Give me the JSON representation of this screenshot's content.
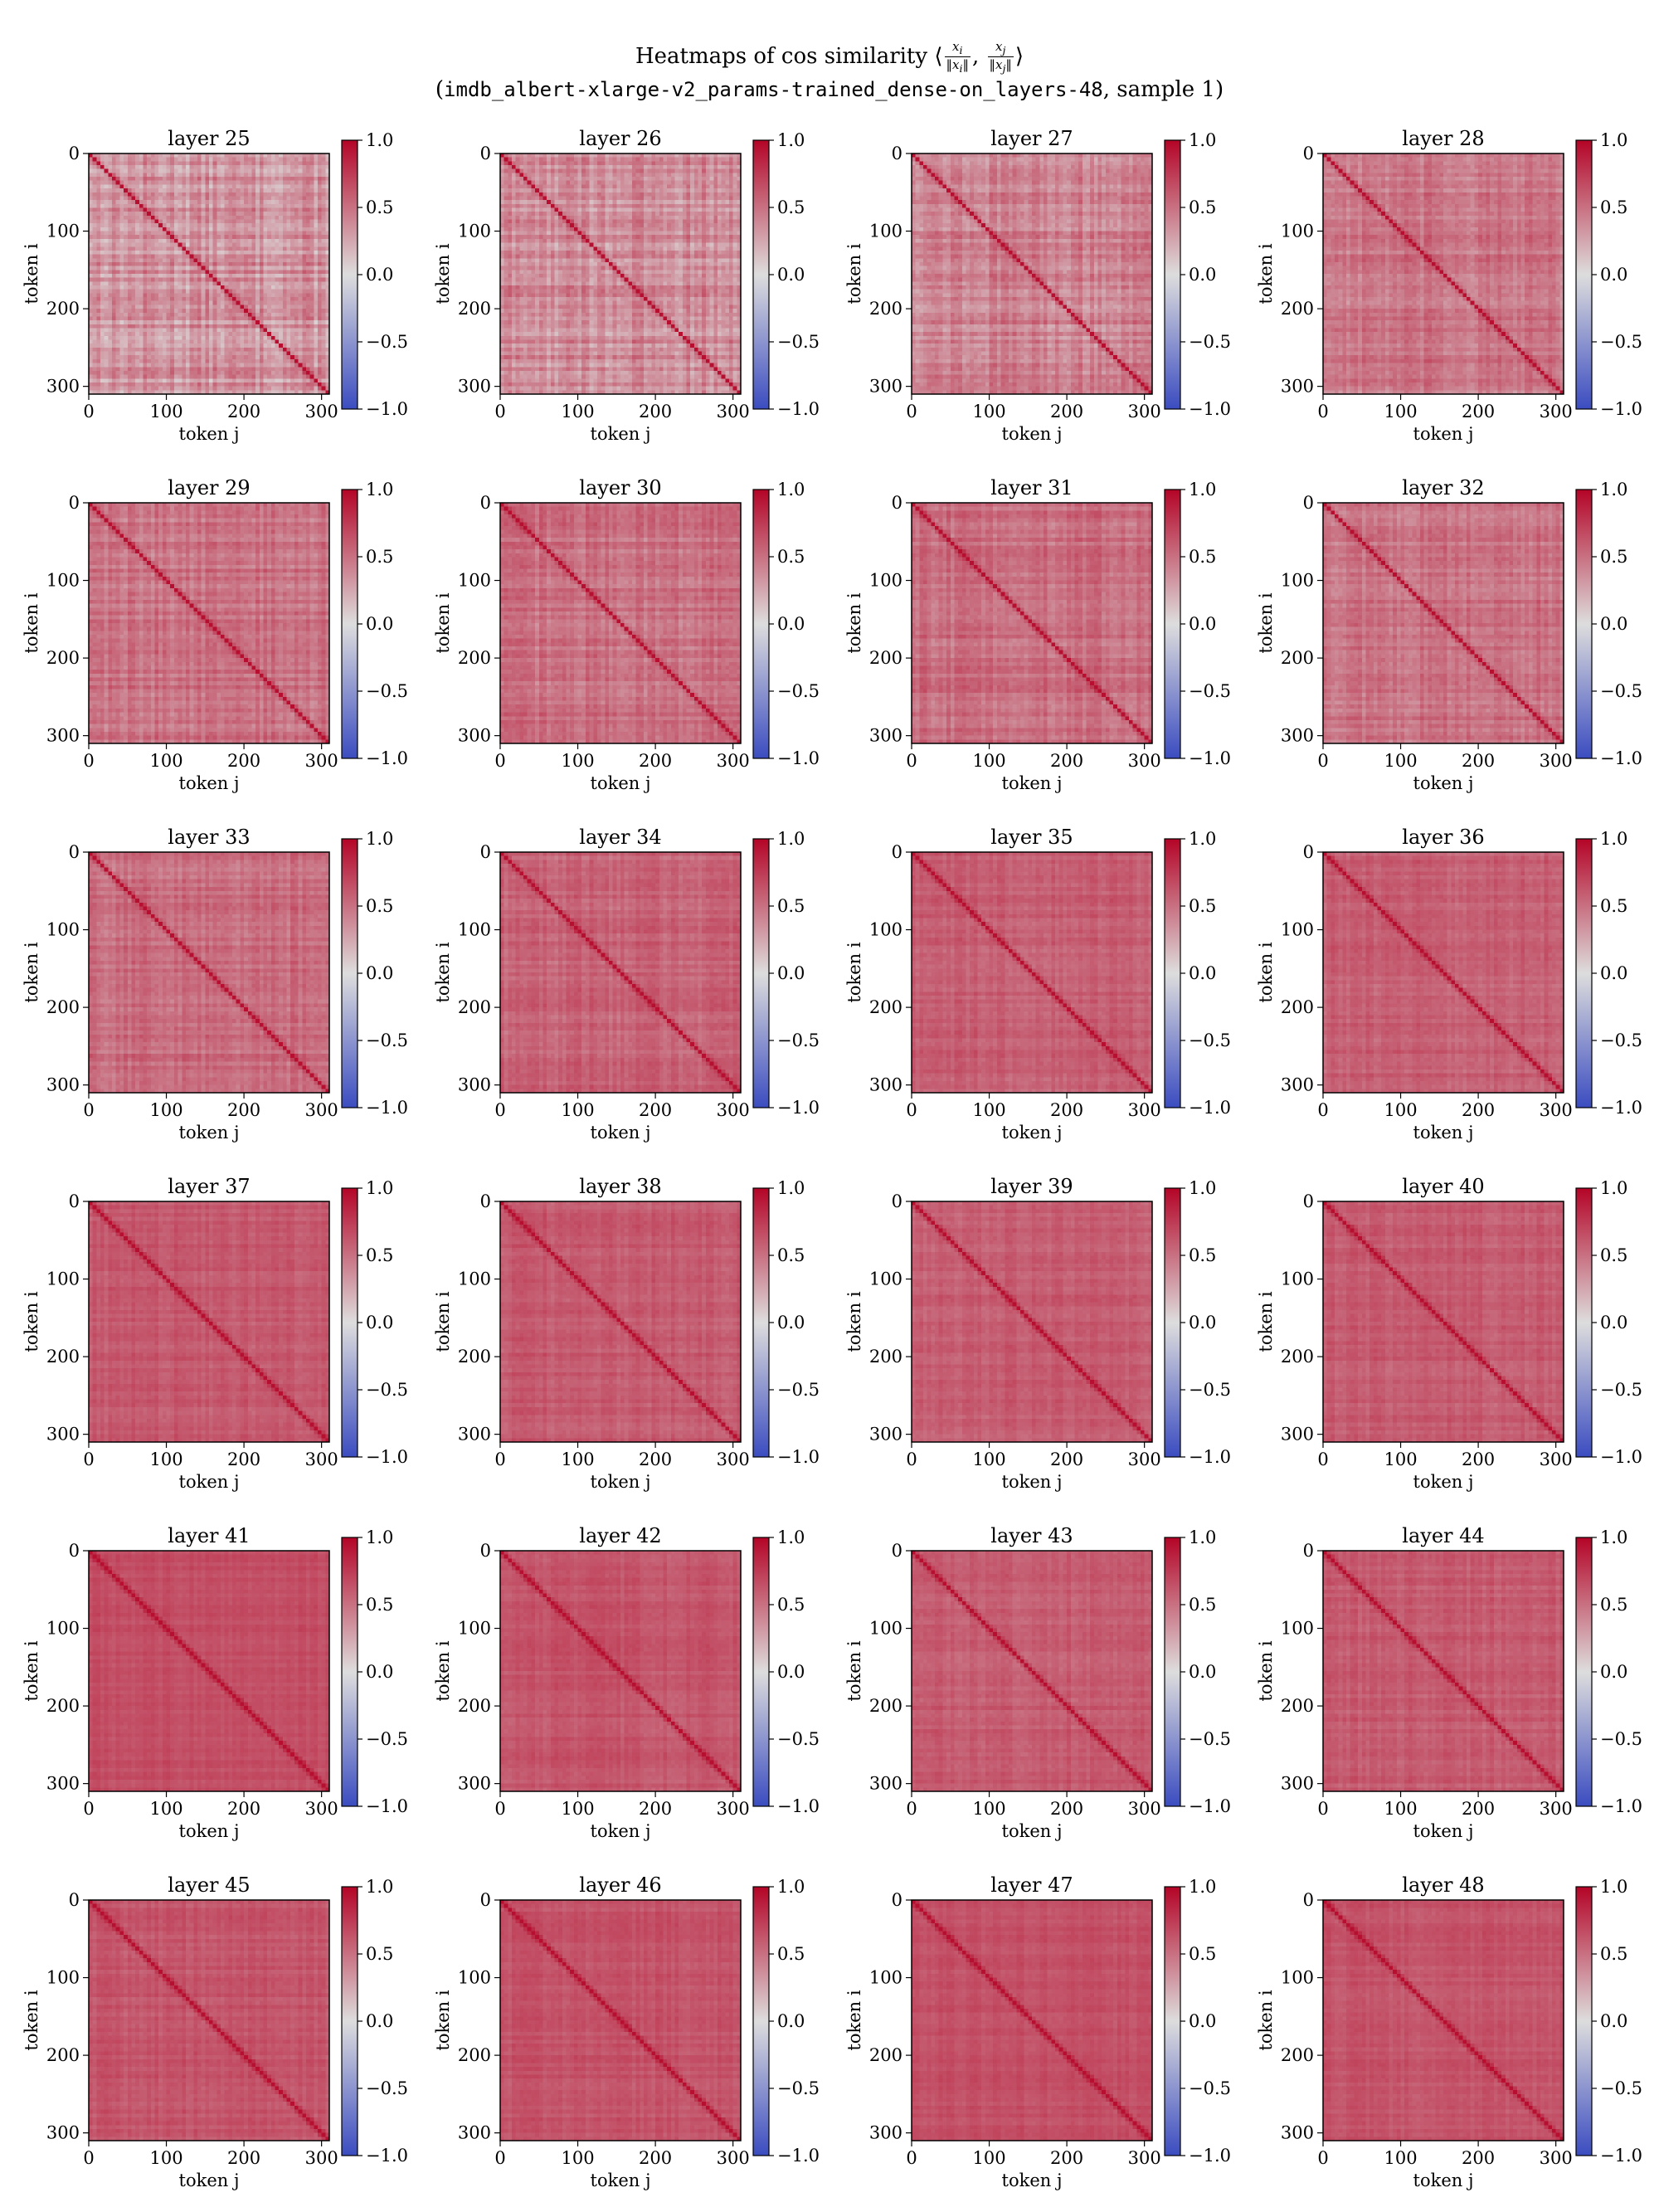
{
  "title": {
    "prefix": "Heatmaps of cos similarity",
    "frac1_num": "x",
    "frac1_num_sub": "i",
    "frac1_den": "‖x",
    "frac1_den_sub": "i",
    "frac1_den_end": "‖",
    "frac2_num": "x",
    "frac2_num_sub": "j",
    "frac2_den": "‖x",
    "frac2_den_sub": "j",
    "frac2_den_end": "‖",
    "line2_open": "(",
    "line2_mono": "imdb_albert-xlarge-v2_params-trained_dense-on_layers-48",
    "line2_rest": ", sample 1)"
  },
  "chart_data": {
    "type": "heatmap",
    "layout": {
      "rows": 6,
      "cols": 4
    },
    "colormap": "coolwarm",
    "color_range": [
      -1.0,
      1.0
    ],
    "colors": {
      "low": "#3b4cc0",
      "mid": "#dddddd",
      "high": "#b40426"
    },
    "n_tokens": 310,
    "xlabel": "token j",
    "ylabel": "token i",
    "x_ticks": [
      0,
      100,
      200,
      300
    ],
    "y_ticks": [
      0,
      100,
      200,
      300
    ],
    "colorbar_ticks": [
      1.0,
      0.5,
      0.0,
      -0.5,
      -1.0
    ],
    "colorbar_tick_labels": [
      "1.0",
      "0.5",
      "0.0",
      "−0.5",
      "−1.0"
    ],
    "panels": [
      {
        "title": "layer 25",
        "mean_similarity": 0.34
      },
      {
        "title": "layer 26",
        "mean_similarity": 0.37
      },
      {
        "title": "layer 27",
        "mean_similarity": 0.42
      },
      {
        "title": "layer 28",
        "mean_similarity": 0.46
      },
      {
        "title": "layer 29",
        "mean_similarity": 0.49
      },
      {
        "title": "layer 30",
        "mean_similarity": 0.5
      },
      {
        "title": "layer 31",
        "mean_similarity": 0.51
      },
      {
        "title": "layer 32",
        "mean_similarity": 0.49
      },
      {
        "title": "layer 33",
        "mean_similarity": 0.52
      },
      {
        "title": "layer 34",
        "mean_similarity": 0.56
      },
      {
        "title": "layer 35",
        "mean_similarity": 0.58
      },
      {
        "title": "layer 36",
        "mean_similarity": 0.58
      },
      {
        "title": "layer 37",
        "mean_similarity": 0.61
      },
      {
        "title": "layer 38",
        "mean_similarity": 0.6
      },
      {
        "title": "layer 39",
        "mean_similarity": 0.6
      },
      {
        "title": "layer 40",
        "mean_similarity": 0.6
      },
      {
        "title": "layer 41",
        "mean_similarity": 0.66
      },
      {
        "title": "layer 42",
        "mean_similarity": 0.62
      },
      {
        "title": "layer 43",
        "mean_similarity": 0.6
      },
      {
        "title": "layer 44",
        "mean_similarity": 0.6
      },
      {
        "title": "layer 45",
        "mean_similarity": 0.62
      },
      {
        "title": "layer 46",
        "mean_similarity": 0.63
      },
      {
        "title": "layer 47",
        "mean_similarity": 0.65
      },
      {
        "title": "layer 48",
        "mean_similarity": 0.63
      }
    ]
  }
}
